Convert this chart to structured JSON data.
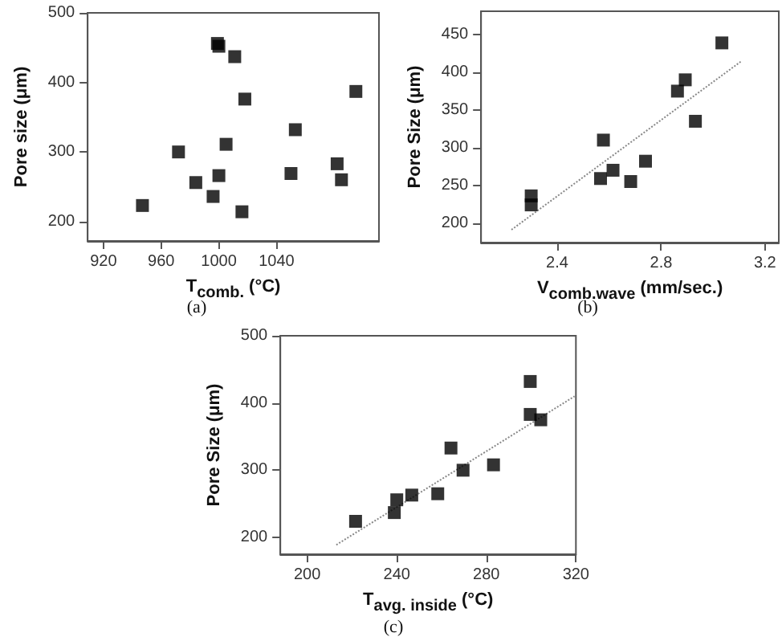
{
  "chart_data": [
    {
      "type": "scatter",
      "xlabel": "T$_{comb.}$ (°C)",
      "ylabel": "Pore size (μm)",
      "annotations": [
        "(a)"
      ],
      "xlim": [
        909,
        1111
      ],
      "ylim": [
        172,
        500
      ],
      "xticks": [
        920,
        960,
        1000,
        1040
      ],
      "yticks": [
        200,
        300,
        400,
        500
      ],
      "series": [
        {
          "marker": "square",
          "color": "#000000",
          "x": [
            947,
            972,
            984,
            996,
            1000,
            999,
            1000,
            1005,
            1011,
            1018,
            1016,
            1050,
            1053,
            1082,
            1085,
            1095
          ],
          "values": [
            223,
            300,
            256,
            236,
            266,
            456,
            452,
            311,
            437,
            376,
            214,
            269,
            332,
            283,
            260,
            387
          ]
        }
      ]
    },
    {
      "type": "scatter",
      "xlabel": "V$_{comb.wave}$ (mm/sec.)",
      "ylabel": "Pore Size (μm)",
      "annotations": [
        "(b)"
      ],
      "xlim": [
        2.107,
        3.253
      ],
      "ylim": [
        174,
        481
      ],
      "xticks": [
        2.4,
        2.8,
        3.2
      ],
      "yticks": [
        200,
        250,
        300,
        350,
        400,
        450
      ],
      "series": [
        {
          "marker": "square",
          "color": "#000000",
          "x": [
            2.3,
            2.3,
            2.578,
            2.567,
            2.615,
            2.683,
            2.74,
            2.863,
            2.893,
            2.932,
            3.034
          ],
          "values": [
            236,
            224,
            310,
            259,
            270,
            255,
            282,
            375,
            390,
            335,
            439
          ]
        },
        {
          "type": "line",
          "marker": "none",
          "line_style": "dotted",
          "color": "#888888",
          "x": [
            2.224,
            3.11
          ],
          "values": [
            191,
            415
          ]
        }
      ]
    },
    {
      "type": "scatter",
      "xlabel": "T$_{avg. inside}$ (°C)",
      "ylabel": "Pore Size (μm)",
      "annotations": [
        "(c)"
      ],
      "xlim": [
        188,
        320
      ],
      "ylim": [
        175,
        500
      ],
      "xticks": [
        200,
        240,
        280,
        320
      ],
      "yticks": [
        200,
        300,
        400,
        500
      ],
      "series": [
        {
          "marker": "square",
          "color": "#000000",
          "x": [
            221.6,
            238.9,
            240,
            246.7,
            258.3,
            264.2,
            269.6,
            283.2,
            299.6,
            299.6,
            304.3
          ],
          "values": [
            224,
            237,
            256,
            263,
            265,
            333,
            300,
            308,
            432,
            383,
            375
          ]
        },
        {
          "type": "line",
          "marker": "none",
          "line_style": "dotted",
          "color": "#888888",
          "x": [
            213,
            319.4
          ],
          "values": [
            189,
            410
          ]
        }
      ]
    }
  ]
}
